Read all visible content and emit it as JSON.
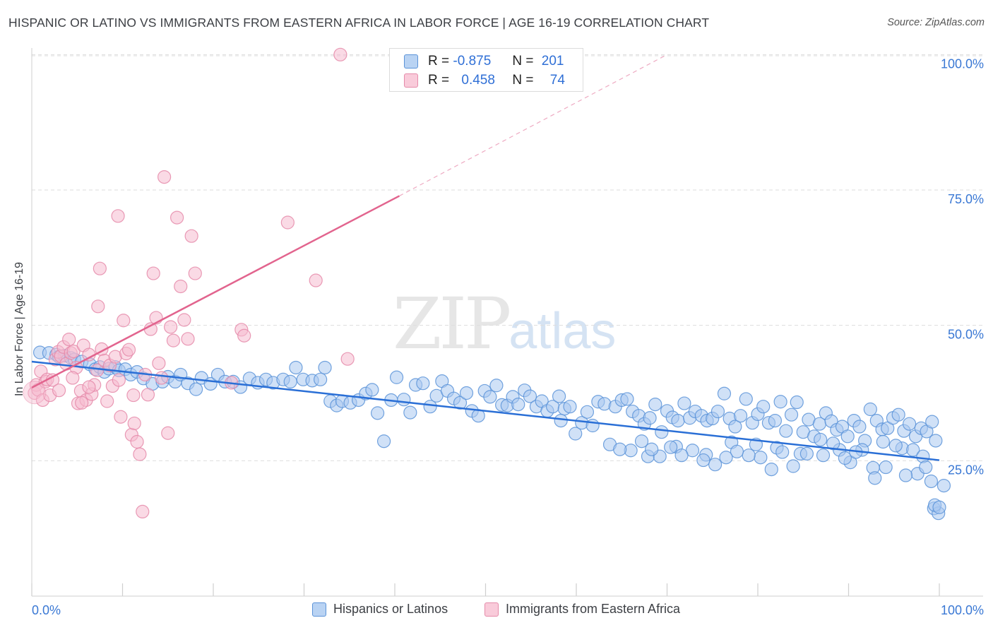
{
  "title": "HISPANIC OR LATINO VS IMMIGRANTS FROM EASTERN AFRICA IN LABOR FORCE | AGE 16-19 CORRELATION CHART",
  "source": "Source: ZipAtlas.com",
  "watermark": {
    "zip": "ZIP",
    "atlas": "atlas"
  },
  "colors": {
    "blue_fill": "#a9c8f0",
    "blue_stroke": "#5b93d8",
    "blue_line": "#2a6fd6",
    "pink_fill": "#f6bcd0",
    "pink_stroke": "#e58aa9",
    "pink_line": "#e2648e",
    "axis_label": "#3a78d4",
    "grid": "#dddddd"
  },
  "stats": {
    "rows": [
      {
        "r_label": "R =",
        "r_value": "-0.875",
        "n_label": "N =",
        "n_value": "201"
      },
      {
        "r_label": "R =",
        "r_value": "0.458",
        "n_label": "N =",
        "n_value": "74"
      }
    ]
  },
  "legend": [
    {
      "label": "Hispanics or Latinos"
    },
    {
      "label": "Immigrants from Eastern Africa"
    }
  ],
  "chart_data": {
    "type": "scatter",
    "title": "HISPANIC OR LATINO VS IMMIGRANTS FROM EASTERN AFRICA IN LABOR FORCE | AGE 16-19 CORRELATION CHART",
    "xlabel": "",
    "ylabel": "In Labor Force | Age 16-19",
    "xlim": [
      0,
      100
    ],
    "ylim": [
      0,
      102
    ],
    "x_tick_labels": [
      "0.0%",
      "100.0%"
    ],
    "y_ticks": [
      25,
      50,
      75,
      100
    ],
    "y_tick_labels": [
      "25.0%",
      "50.0%",
      "75.0%",
      "100.0%"
    ],
    "grid": true,
    "legend_position": "bottom",
    "series": [
      {
        "name": "Hispanics or Latinos",
        "r": -0.875,
        "n": 201,
        "trend": {
          "x0": 0,
          "y0": 43.3,
          "x1": 100,
          "y1": 25.1
        },
        "points": [
          [
            0.9,
            45.0
          ],
          [
            1.9,
            44.9
          ],
          [
            2.7,
            44.6
          ],
          [
            3.0,
            44.2
          ],
          [
            3.6,
            44.4
          ],
          [
            4.3,
            44.0
          ],
          [
            4.7,
            43.7
          ],
          [
            5.5,
            43.3
          ],
          [
            6.4,
            42.8
          ],
          [
            7.0,
            41.9
          ],
          [
            7.5,
            42.3
          ],
          [
            8.0,
            41.4
          ],
          [
            8.5,
            42.0
          ],
          [
            9.2,
            42.3
          ],
          [
            9.6,
            41.7
          ],
          [
            10.3,
            41.9
          ],
          [
            10.9,
            40.9
          ],
          [
            11.6,
            41.4
          ],
          [
            12.3,
            40.2
          ],
          [
            13.3,
            39.2
          ],
          [
            14.4,
            39.6
          ],
          [
            15.0,
            40.5
          ],
          [
            15.8,
            39.6
          ],
          [
            16.4,
            40.9
          ],
          [
            17.2,
            39.3
          ],
          [
            18.1,
            38.2
          ],
          [
            18.7,
            40.3
          ],
          [
            19.7,
            39.2
          ],
          [
            20.5,
            40.9
          ],
          [
            21.3,
            39.6
          ],
          [
            22.2,
            39.6
          ],
          [
            23.0,
            38.6
          ],
          [
            24.0,
            40.2
          ],
          [
            24.9,
            39.4
          ],
          [
            25.8,
            40.0
          ],
          [
            26.6,
            39.4
          ],
          [
            27.7,
            40.0
          ],
          [
            28.5,
            39.6
          ],
          [
            29.1,
            42.2
          ],
          [
            29.9,
            40.0
          ],
          [
            30.9,
            39.8
          ],
          [
            31.8,
            40.0
          ],
          [
            32.3,
            42.2
          ],
          [
            32.9,
            36.0
          ],
          [
            33.6,
            35.2
          ],
          [
            34.2,
            36.0
          ],
          [
            35.1,
            35.7
          ],
          [
            36.0,
            36.2
          ],
          [
            36.8,
            37.4
          ],
          [
            37.5,
            38.1
          ],
          [
            38.1,
            33.8
          ],
          [
            38.8,
            28.6
          ],
          [
            39.6,
            36.2
          ],
          [
            40.2,
            40.4
          ],
          [
            41.0,
            36.3
          ],
          [
            41.7,
            33.9
          ],
          [
            42.3,
            39.0
          ],
          [
            43.1,
            39.3
          ],
          [
            43.9,
            35.0
          ],
          [
            44.6,
            37.0
          ],
          [
            45.2,
            39.7
          ],
          [
            45.8,
            37.9
          ],
          [
            46.5,
            36.5
          ],
          [
            47.2,
            35.7
          ],
          [
            47.9,
            37.5
          ],
          [
            48.5,
            34.2
          ],
          [
            49.2,
            33.3
          ],
          [
            49.9,
            37.9
          ],
          [
            50.5,
            36.8
          ],
          [
            51.2,
            38.9
          ],
          [
            51.8,
            35.3
          ],
          [
            52.4,
            35.2
          ],
          [
            53.0,
            36.8
          ],
          [
            53.6,
            35.4
          ],
          [
            54.3,
            38.0
          ],
          [
            54.9,
            36.9
          ],
          [
            55.6,
            35.0
          ],
          [
            56.2,
            36.0
          ],
          [
            56.8,
            34.2
          ],
          [
            57.4,
            35.0
          ],
          [
            58.1,
            36.9
          ],
          [
            58.7,
            34.6
          ],
          [
            59.3,
            35.0
          ],
          [
            59.9,
            30.0
          ],
          [
            60.6,
            32.0
          ],
          [
            61.2,
            34.0
          ],
          [
            61.8,
            31.5
          ],
          [
            62.4,
            35.9
          ],
          [
            63.1,
            35.5
          ],
          [
            63.7,
            28.0
          ],
          [
            64.3,
            35.0
          ],
          [
            65.0,
            36.2
          ],
          [
            65.6,
            36.4
          ],
          [
            66.2,
            34.1
          ],
          [
            66.9,
            33.3
          ],
          [
            67.5,
            31.8
          ],
          [
            68.1,
            32.9
          ],
          [
            68.7,
            35.4
          ],
          [
            69.4,
            30.3
          ],
          [
            70.0,
            34.2
          ],
          [
            70.6,
            33.0
          ],
          [
            71.2,
            32.4
          ],
          [
            71.9,
            35.6
          ],
          [
            72.5,
            32.9
          ],
          [
            73.1,
            34.1
          ],
          [
            73.8,
            33.3
          ],
          [
            74.4,
            32.4
          ],
          [
            75.0,
            32.8
          ],
          [
            75.6,
            34.1
          ],
          [
            76.3,
            37.4
          ],
          [
            76.9,
            32.8
          ],
          [
            77.5,
            31.3
          ],
          [
            78.1,
            33.3
          ],
          [
            78.7,
            36.4
          ],
          [
            79.4,
            32.0
          ],
          [
            80.0,
            33.6
          ],
          [
            80.6,
            35.0
          ],
          [
            81.2,
            32.0
          ],
          [
            81.9,
            32.4
          ],
          [
            82.5,
            35.9
          ],
          [
            83.1,
            30.5
          ],
          [
            83.7,
            33.5
          ],
          [
            84.3,
            35.8
          ],
          [
            85.0,
            30.3
          ],
          [
            85.6,
            32.6
          ],
          [
            86.2,
            29.5
          ],
          [
            86.8,
            31.8
          ],
          [
            87.5,
            33.8
          ],
          [
            88.1,
            32.3
          ],
          [
            88.7,
            30.7
          ],
          [
            89.3,
            31.3
          ],
          [
            89.9,
            29.5
          ],
          [
            90.6,
            32.4
          ],
          [
            91.2,
            31.3
          ],
          [
            91.8,
            28.7
          ],
          [
            92.4,
            34.5
          ],
          [
            93.1,
            32.4
          ],
          [
            93.7,
            30.8
          ],
          [
            94.3,
            31.0
          ],
          [
            94.9,
            32.9
          ],
          [
            95.5,
            33.5
          ],
          [
            96.1,
            30.5
          ],
          [
            96.7,
            31.8
          ],
          [
            97.4,
            29.5
          ],
          [
            98.0,
            31.0
          ],
          [
            98.6,
            30.4
          ],
          [
            99.2,
            32.2
          ],
          [
            99.6,
            28.7
          ],
          [
            58.3,
            32.4
          ],
          [
            67.9,
            25.8
          ],
          [
            71.0,
            27.6
          ],
          [
            74.3,
            26.1
          ],
          [
            77.1,
            28.4
          ],
          [
            79.8,
            28.0
          ],
          [
            82.1,
            27.4
          ],
          [
            84.7,
            26.3
          ],
          [
            87.2,
            26.0
          ],
          [
            89.0,
            27.0
          ],
          [
            90.2,
            24.7
          ],
          [
            92.7,
            23.7
          ],
          [
            94.1,
            23.8
          ],
          [
            95.9,
            27.3
          ],
          [
            97.1,
            27.0
          ],
          [
            98.2,
            25.8
          ],
          [
            97.6,
            22.6
          ],
          [
            98.5,
            23.8
          ],
          [
            99.1,
            21.2
          ],
          [
            99.4,
            16.2
          ],
          [
            99.9,
            15.3
          ],
          [
            99.5,
            16.8
          ],
          [
            100.0,
            16.4
          ],
          [
            100.5,
            20.4
          ],
          [
            92.9,
            21.8
          ],
          [
            96.3,
            22.3
          ],
          [
            95.2,
            27.8
          ],
          [
            93.8,
            28.5
          ],
          [
            91.5,
            27.0
          ],
          [
            90.8,
            26.6
          ],
          [
            89.6,
            25.5
          ],
          [
            88.3,
            28.2
          ],
          [
            86.9,
            28.9
          ],
          [
            85.4,
            26.3
          ],
          [
            83.9,
            24.0
          ],
          [
            82.7,
            26.6
          ],
          [
            81.5,
            23.4
          ],
          [
            80.3,
            25.6
          ],
          [
            79.0,
            26.0
          ],
          [
            77.7,
            26.7
          ],
          [
            76.5,
            25.6
          ],
          [
            75.3,
            24.3
          ],
          [
            74.0,
            25.1
          ],
          [
            72.8,
            26.9
          ],
          [
            71.6,
            26.0
          ],
          [
            70.4,
            27.5
          ],
          [
            69.2,
            25.8
          ],
          [
            68.3,
            27.1
          ],
          [
            67.2,
            28.6
          ],
          [
            66.0,
            26.9
          ],
          [
            64.8,
            27.1
          ]
        ]
      },
      {
        "name": "Immigrants from Eastern Africa",
        "r": 0.458,
        "n": 74,
        "trend": {
          "x0": 0,
          "y0": 38.5,
          "x1": 40.5,
          "y1": 73.9,
          "dashed_to_x": 70,
          "dashed_to_y": 100
        },
        "points": [
          [
            0.3,
            37.5
          ],
          [
            0.5,
            39.0
          ],
          [
            0.7,
            38.1
          ],
          [
            1.0,
            41.5
          ],
          [
            1.2,
            36.2
          ],
          [
            1.5,
            39.6
          ],
          [
            1.7,
            40.0
          ],
          [
            2.0,
            37.1
          ],
          [
            2.3,
            39.9
          ],
          [
            2.6,
            43.7
          ],
          [
            2.9,
            45.1
          ],
          [
            3.2,
            44.3
          ],
          [
            3.5,
            46.0
          ],
          [
            3.8,
            42.9
          ],
          [
            4.1,
            47.4
          ],
          [
            4.3,
            44.9
          ],
          [
            4.6,
            45.2
          ],
          [
            4.9,
            42.2
          ],
          [
            5.1,
            35.6
          ],
          [
            5.4,
            37.9
          ],
          [
            5.7,
            46.3
          ],
          [
            6.0,
            36.2
          ],
          [
            6.3,
            44.6
          ],
          [
            6.6,
            37.3
          ],
          [
            6.9,
            39.0
          ],
          [
            7.2,
            41.7
          ],
          [
            7.5,
            60.5
          ],
          [
            7.7,
            45.6
          ],
          [
            8.0,
            43.5
          ],
          [
            8.3,
            36.0
          ],
          [
            8.6,
            42.6
          ],
          [
            8.9,
            38.8
          ],
          [
            9.2,
            44.2
          ],
          [
            9.5,
            70.2
          ],
          [
            9.8,
            33.1
          ],
          [
            10.1,
            50.9
          ],
          [
            10.4,
            44.8
          ],
          [
            10.7,
            45.5
          ],
          [
            11.0,
            29.8
          ],
          [
            11.3,
            31.9
          ],
          [
            11.6,
            28.5
          ],
          [
            11.9,
            26.2
          ],
          [
            12.2,
            15.6
          ],
          [
            12.5,
            40.9
          ],
          [
            12.8,
            37.2
          ],
          [
            13.1,
            49.3
          ],
          [
            13.4,
            59.6
          ],
          [
            13.7,
            51.4
          ],
          [
            14.0,
            43.0
          ],
          [
            14.3,
            40.3
          ],
          [
            14.6,
            77.4
          ],
          [
            15.0,
            30.1
          ],
          [
            15.3,
            49.7
          ],
          [
            15.6,
            47.2
          ],
          [
            16.0,
            69.9
          ],
          [
            16.4,
            57.2
          ],
          [
            16.8,
            51.0
          ],
          [
            17.2,
            47.5
          ],
          [
            17.6,
            66.5
          ],
          [
            18.0,
            59.6
          ],
          [
            7.3,
            53.5
          ],
          [
            4.5,
            40.3
          ],
          [
            6.3,
            38.6
          ],
          [
            23.1,
            49.2
          ],
          [
            23.4,
            48.1
          ],
          [
            22.0,
            39.4
          ],
          [
            28.2,
            69.0
          ],
          [
            31.3,
            58.3
          ],
          [
            34.0,
            100.0
          ],
          [
            34.8,
            43.8
          ],
          [
            3.0,
            38.0
          ],
          [
            5.5,
            35.7
          ],
          [
            9.6,
            39.9
          ],
          [
            11.2,
            37.1
          ]
        ]
      }
    ]
  }
}
